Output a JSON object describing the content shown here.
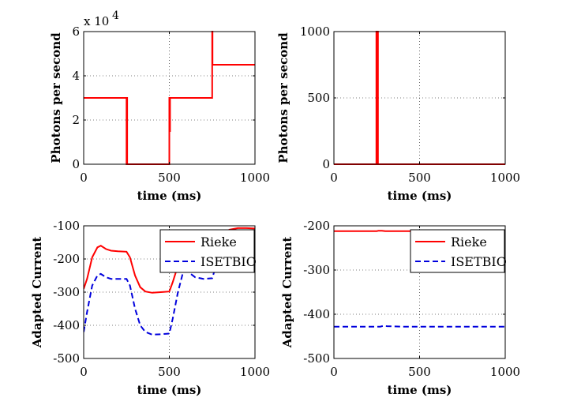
{
  "chart_data": [
    {
      "type": "line",
      "xlabel": "time (ms)",
      "ylabel": "Photons per second",
      "xlim": [
        0,
        1000
      ],
      "ylim": [
        0,
        60000
      ],
      "xticks": [
        0,
        500,
        1000
      ],
      "yticks": [
        0,
        20000,
        40000,
        60000
      ],
      "ytick_labels": [
        "0",
        "2",
        "4",
        "6"
      ],
      "y_exponent_label": "x 10",
      "y_exponent_power": "4",
      "grid": true,
      "series": [
        {
          "color": "#ff0000",
          "dash": "solid",
          "x": [
            0,
            250,
            250,
            252,
            252,
            254,
            254,
            500,
            500,
            502,
            502,
            504,
            504,
            750,
            750,
            752,
            752,
            1000
          ],
          "y": [
            30000,
            30000,
            0,
            0,
            30000,
            30000,
            0,
            0,
            30000,
            30000,
            15000,
            15000,
            30000,
            30000,
            60000,
            60000,
            45000,
            45000
          ]
        }
      ]
    },
    {
      "type": "line",
      "xlabel": "time (ms)",
      "ylabel": "Photons per second",
      "xlim": [
        0,
        1000
      ],
      "ylim": [
        0,
        1000
      ],
      "xticks": [
        0,
        500,
        1000
      ],
      "yticks": [
        0,
        500,
        1000
      ],
      "ytick_labels": [
        "0",
        "500",
        "1000"
      ],
      "grid": true,
      "series": [
        {
          "color": "#ff0000",
          "dash": "solid",
          "x": [
            0,
            248,
            248,
            251,
            251,
            254,
            254,
            257,
            257,
            1000
          ],
          "y": [
            0,
            0,
            1000,
            1000,
            0,
            0,
            1000,
            1000,
            0,
            0
          ]
        }
      ]
    },
    {
      "type": "line",
      "xlabel": "time (ms)",
      "ylabel": "Adapted Current",
      "xlim": [
        0,
        1000
      ],
      "ylim": [
        -500,
        -100
      ],
      "xticks": [
        0,
        500,
        1000
      ],
      "yticks": [
        -500,
        -400,
        -300,
        -200,
        -100
      ],
      "ytick_labels": [
        "-500",
        "-400",
        "-300",
        "-200",
        "-100"
      ],
      "grid": true,
      "legend": "top-right",
      "series": [
        {
          "name": "Rieke",
          "color": "#ff0000",
          "dash": "solid",
          "x": [
            0,
            20,
            50,
            80,
            100,
            130,
            160,
            200,
            250,
            270,
            300,
            330,
            360,
            400,
            450,
            500,
            520,
            550,
            580,
            600,
            650,
            700,
            750,
            770,
            800,
            850,
            900,
            950,
            1000
          ],
          "y": [
            -290,
            -260,
            -195,
            -165,
            -160,
            -170,
            -175,
            -177,
            -178,
            -195,
            -250,
            -285,
            -298,
            -302,
            -300,
            -298,
            -270,
            -220,
            -200,
            -200,
            -200,
            -200,
            -200,
            -175,
            -130,
            -112,
            -107,
            -107,
            -108
          ]
        },
        {
          "name": "ISETBIO",
          "color": "#0000dd",
          "dash": "dashed",
          "x": [
            0,
            20,
            50,
            80,
            100,
            130,
            160,
            200,
            250,
            270,
            300,
            330,
            360,
            400,
            450,
            500,
            520,
            550,
            580,
            600,
            650,
            700,
            750,
            770,
            800,
            850,
            900,
            950,
            1000
          ],
          "y": [
            -420,
            -360,
            -280,
            -250,
            -245,
            -255,
            -260,
            -260,
            -260,
            -280,
            -350,
            -400,
            -420,
            -428,
            -427,
            -425,
            -380,
            -300,
            -240,
            -235,
            -255,
            -260,
            -258,
            -225,
            -185,
            -165,
            -160,
            -160,
            -162
          ]
        }
      ]
    },
    {
      "type": "line",
      "xlabel": "time (ms)",
      "ylabel": "Adapted Current",
      "xlim": [
        0,
        1000
      ],
      "ylim": [
        -500,
        -200
      ],
      "xticks": [
        0,
        500,
        1000
      ],
      "yticks": [
        -500,
        -400,
        -300,
        -200
      ],
      "ytick_labels": [
        "-500",
        "-400",
        "-300",
        "-200"
      ],
      "grid": true,
      "legend": "top-right",
      "series": [
        {
          "name": "Rieke",
          "color": "#ff0000",
          "dash": "solid",
          "x": [
            0,
            100,
            200,
            250,
            260,
            280,
            300,
            400,
            500,
            600,
            700,
            800,
            900,
            1000
          ],
          "y": [
            -212,
            -212,
            -212,
            -212,
            -211,
            -211,
            -212,
            -212,
            -212,
            -212,
            -212,
            -212,
            -212,
            -212
          ]
        },
        {
          "name": "ISETBIO",
          "color": "#0000dd",
          "dash": "dashed",
          "x": [
            0,
            100,
            200,
            250,
            270,
            290,
            310,
            400,
            500,
            600,
            700,
            800,
            900,
            1000
          ],
          "y": [
            -428,
            -428,
            -428,
            -428,
            -428,
            -426,
            -427,
            -428,
            -428,
            -428,
            -428,
            -428,
            -428,
            -428
          ]
        }
      ]
    }
  ]
}
